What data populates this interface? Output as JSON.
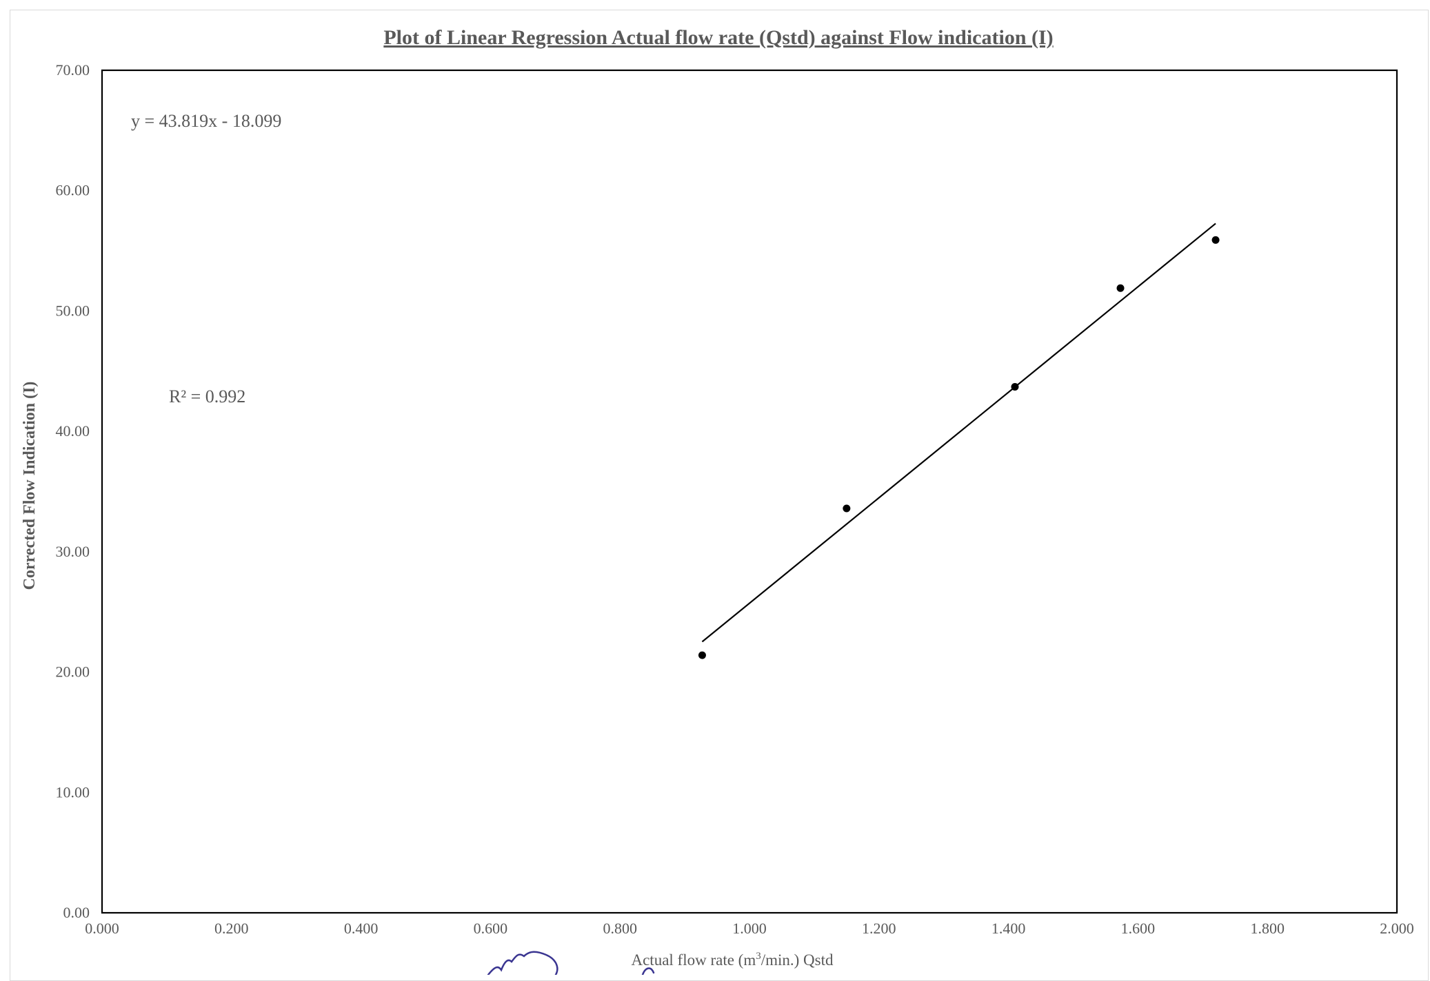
{
  "chart_data": {
    "type": "scatter",
    "title": "Plot of Linear Regression Actual flow rate (Qstd) against Flow indication (I)",
    "xlabel": {
      "prefix": "Actual flow rate (m",
      "sup": "3",
      "suffix": "/min.) Qstd"
    },
    "ylabel": "Corrected Flow Indication (I)",
    "xlim": [
      0,
      2
    ],
    "ylim": [
      0,
      70
    ],
    "x_ticks": [
      "0.000",
      "0.200",
      "0.400",
      "0.600",
      "0.800",
      "1.000",
      "1.200",
      "1.400",
      "1.600",
      "1.800",
      "2.000"
    ],
    "y_ticks": [
      "0.00",
      "10.00",
      "20.00",
      "30.00",
      "40.00",
      "50.00",
      "60.00",
      "70.00"
    ],
    "grid": false,
    "legend": "none",
    "points": [
      {
        "x": 0.927,
        "y": 21.4
      },
      {
        "x": 1.15,
        "y": 33.6
      },
      {
        "x": 1.41,
        "y": 43.7
      },
      {
        "x": 1.573,
        "y": 51.9
      },
      {
        "x": 1.72,
        "y": 55.9
      }
    ],
    "trendline": {
      "slope": 43.819,
      "intercept": -18.099,
      "x_range": [
        0.927,
        1.72
      ],
      "equation": "y = 43.819x - 18.099",
      "r_squared": "R² = 0.992"
    },
    "colors": {
      "marker": "#000000",
      "trendline": "#000000",
      "text": "#595959",
      "signature": "#3a3591"
    }
  }
}
